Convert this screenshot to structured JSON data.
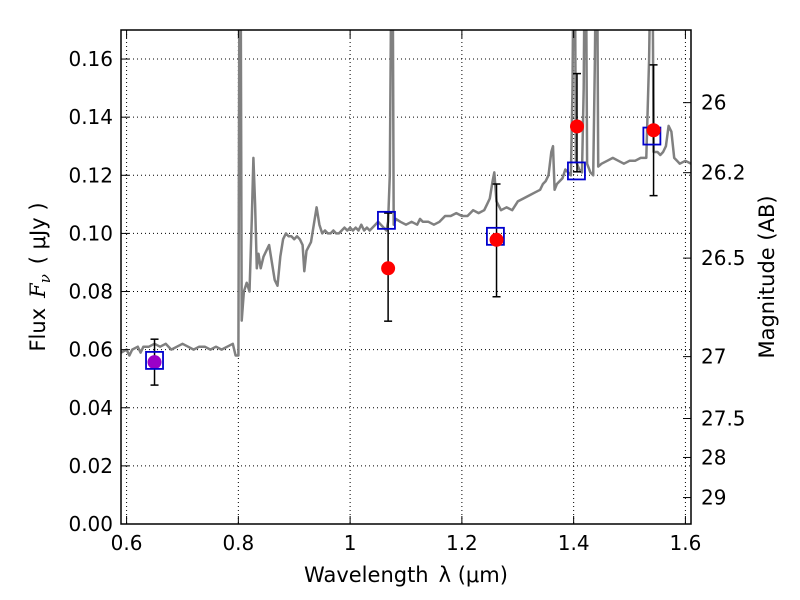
{
  "chart_data": {
    "type": "scatter",
    "xlabel_prefix": "Wavelength",
    "xlabel_math": "λ (μm)",
    "ylabel_prefix": "Flux",
    "ylabel_math": "F",
    "ylabel_sub": "ν",
    "ylabel_unit": "( μJy )",
    "ylabel_right": "Magnitude (AB)",
    "xlim": [
      0.59,
      1.61
    ],
    "ylim": [
      0.0,
      0.17
    ],
    "x_ticks": [
      0.6,
      0.8,
      1.0,
      1.2,
      1.4,
      1.6
    ],
    "x_tick_labels": [
      "0.6",
      "0.8",
      "1",
      "1.2",
      "1.4",
      "1.6"
    ],
    "y_ticks": [
      0.0,
      0.02,
      0.04,
      0.06,
      0.08,
      0.1,
      0.12,
      0.14,
      0.16
    ],
    "y_tick_labels": [
      "0.00",
      "0.02",
      "0.04",
      "0.06",
      "0.08",
      "0.10",
      "0.12",
      "0.14",
      "0.16"
    ],
    "right_ticks": [
      {
        "flux": 0.145,
        "label": "26"
      },
      {
        "flux": 0.1209,
        "label": "26.2"
      },
      {
        "flux": 0.0915,
        "label": "26.5"
      },
      {
        "flux": 0.0576,
        "label": "27"
      },
      {
        "flux": 0.0363,
        "label": "27.5"
      },
      {
        "flux": 0.0229,
        "label": "28"
      },
      {
        "flux": 0.0091,
        "label": "29"
      }
    ],
    "grid": true,
    "series": [
      {
        "kind": "model_spectrum",
        "color": "#808080",
        "points": [
          [
            0.59,
            0.059
          ],
          [
            0.6,
            0.06
          ],
          [
            0.605,
            0.058
          ],
          [
            0.61,
            0.06
          ],
          [
            0.62,
            0.061
          ],
          [
            0.625,
            0.059
          ],
          [
            0.63,
            0.061
          ],
          [
            0.64,
            0.061
          ],
          [
            0.65,
            0.062
          ],
          [
            0.66,
            0.061
          ],
          [
            0.67,
            0.062
          ],
          [
            0.68,
            0.06
          ],
          [
            0.69,
            0.061
          ],
          [
            0.7,
            0.062
          ],
          [
            0.71,
            0.061
          ],
          [
            0.72,
            0.06
          ],
          [
            0.73,
            0.061
          ],
          [
            0.74,
            0.061
          ],
          [
            0.75,
            0.06
          ],
          [
            0.76,
            0.061
          ],
          [
            0.77,
            0.06
          ],
          [
            0.78,
            0.061
          ],
          [
            0.79,
            0.062
          ],
          [
            0.795,
            0.058
          ],
          [
            0.8,
            0.058
          ],
          [
            0.802,
            0.2
          ],
          [
            0.804,
            0.2
          ],
          [
            0.806,
            0.07
          ],
          [
            0.81,
            0.08
          ],
          [
            0.815,
            0.083
          ],
          [
            0.82,
            0.08
          ],
          [
            0.824,
            0.105
          ],
          [
            0.827,
            0.126
          ],
          [
            0.83,
            0.11
          ],
          [
            0.833,
            0.088
          ],
          [
            0.836,
            0.093
          ],
          [
            0.84,
            0.088
          ],
          [
            0.845,
            0.092
          ],
          [
            0.85,
            0.094
          ],
          [
            0.855,
            0.096
          ],
          [
            0.86,
            0.09
          ],
          [
            0.865,
            0.084
          ],
          [
            0.87,
            0.082
          ],
          [
            0.875,
            0.092
          ],
          [
            0.88,
            0.098
          ],
          [
            0.885,
            0.1
          ],
          [
            0.89,
            0.099
          ],
          [
            0.895,
            0.099
          ],
          [
            0.9,
            0.098
          ],
          [
            0.905,
            0.099
          ],
          [
            0.91,
            0.098
          ],
          [
            0.915,
            0.096
          ],
          [
            0.918,
            0.087
          ],
          [
            0.922,
            0.094
          ],
          [
            0.93,
            0.097
          ],
          [
            0.935,
            0.103
          ],
          [
            0.94,
            0.109
          ],
          [
            0.945,
            0.103
          ],
          [
            0.95,
            0.1
          ],
          [
            0.955,
            0.101
          ],
          [
            0.96,
            0.1
          ],
          [
            0.965,
            0.1
          ],
          [
            0.97,
            0.101
          ],
          [
            0.975,
            0.1
          ],
          [
            0.98,
            0.1
          ],
          [
            0.985,
            0.101
          ],
          [
            0.99,
            0.102
          ],
          [
            0.995,
            0.101
          ],
          [
            1.0,
            0.102
          ],
          [
            1.005,
            0.101
          ],
          [
            1.01,
            0.102
          ],
          [
            1.015,
            0.101
          ],
          [
            1.02,
            0.103
          ],
          [
            1.025,
            0.101
          ],
          [
            1.03,
            0.102
          ],
          [
            1.035,
            0.101
          ],
          [
            1.04,
            0.102
          ],
          [
            1.045,
            0.103
          ],
          [
            1.05,
            0.104
          ],
          [
            1.055,
            0.103
          ],
          [
            1.06,
            0.102
          ],
          [
            1.065,
            0.101
          ],
          [
            1.068,
            0.104
          ],
          [
            1.071,
            0.12
          ],
          [
            1.074,
            0.2
          ],
          [
            1.076,
            0.2
          ],
          [
            1.078,
            0.103
          ],
          [
            1.082,
            0.105
          ],
          [
            1.09,
            0.104
          ],
          [
            1.1,
            0.103
          ],
          [
            1.11,
            0.104
          ],
          [
            1.12,
            0.103
          ],
          [
            1.125,
            0.105
          ],
          [
            1.13,
            0.104
          ],
          [
            1.14,
            0.104
          ],
          [
            1.15,
            0.103
          ],
          [
            1.16,
            0.104
          ],
          [
            1.17,
            0.106
          ],
          [
            1.18,
            0.106
          ],
          [
            1.19,
            0.107
          ],
          [
            1.2,
            0.106
          ],
          [
            1.21,
            0.106
          ],
          [
            1.22,
            0.108
          ],
          [
            1.23,
            0.107
          ],
          [
            1.24,
            0.108
          ],
          [
            1.245,
            0.11
          ],
          [
            1.25,
            0.112
          ],
          [
            1.255,
            0.118
          ],
          [
            1.258,
            0.121
          ],
          [
            1.262,
            0.111
          ],
          [
            1.27,
            0.108
          ],
          [
            1.28,
            0.109
          ],
          [
            1.29,
            0.108
          ],
          [
            1.3,
            0.111
          ],
          [
            1.31,
            0.112
          ],
          [
            1.32,
            0.113
          ],
          [
            1.33,
            0.114
          ],
          [
            1.34,
            0.115
          ],
          [
            1.345,
            0.117
          ],
          [
            1.35,
            0.118
          ],
          [
            1.355,
            0.12
          ],
          [
            1.36,
            0.128
          ],
          [
            1.363,
            0.13
          ],
          [
            1.366,
            0.115
          ],
          [
            1.37,
            0.117
          ],
          [
            1.375,
            0.118
          ],
          [
            1.38,
            0.119
          ],
          [
            1.385,
            0.122
          ],
          [
            1.39,
            0.121
          ],
          [
            1.395,
            0.12
          ],
          [
            1.398,
            0.15
          ],
          [
            1.4,
            0.2
          ],
          [
            1.402,
            0.2
          ],
          [
            1.404,
            0.125
          ],
          [
            1.41,
            0.122
          ],
          [
            1.415,
            0.121
          ],
          [
            1.418,
            0.15
          ],
          [
            1.42,
            0.2
          ],
          [
            1.422,
            0.2
          ],
          [
            1.424,
            0.124
          ],
          [
            1.43,
            0.121
          ],
          [
            1.435,
            0.12
          ],
          [
            1.438,
            0.16
          ],
          [
            1.44,
            0.2
          ],
          [
            1.442,
            0.2
          ],
          [
            1.444,
            0.123
          ],
          [
            1.45,
            0.124
          ],
          [
            1.46,
            0.125
          ],
          [
            1.47,
            0.126
          ],
          [
            1.48,
            0.125
          ],
          [
            1.49,
            0.124
          ],
          [
            1.5,
            0.125
          ],
          [
            1.51,
            0.125
          ],
          [
            1.52,
            0.126
          ],
          [
            1.53,
            0.126
          ],
          [
            1.535,
            0.16
          ],
          [
            1.538,
            0.2
          ],
          [
            1.541,
            0.2
          ],
          [
            1.543,
            0.128
          ],
          [
            1.55,
            0.128
          ],
          [
            1.555,
            0.127
          ],
          [
            1.56,
            0.128
          ],
          [
            1.565,
            0.13
          ],
          [
            1.57,
            0.137
          ],
          [
            1.575,
            0.135
          ],
          [
            1.58,
            0.126
          ],
          [
            1.585,
            0.125
          ],
          [
            1.59,
            0.124
          ],
          [
            1.6,
            0.125
          ],
          [
            1.61,
            0.124
          ]
        ]
      },
      {
        "kind": "model_photometry",
        "marker": "open-square",
        "color": "#0000cc",
        "points": [
          [
            0.65,
            0.0563
          ],
          [
            1.065,
            0.1045
          ],
          [
            1.26,
            0.099
          ],
          [
            1.405,
            0.1215
          ],
          [
            1.54,
            0.1335
          ]
        ]
      },
      {
        "kind": "observed",
        "marker": "filled-circle",
        "color": "#ff0000",
        "first_point_color": "#9b00c8",
        "points": [
          {
            "x": 0.65,
            "y": 0.0557,
            "ylo": 0.0478,
            "yhi": 0.0636
          },
          {
            "x": 1.068,
            "y": 0.088,
            "ylo": 0.0698,
            "yhi": 0.107
          },
          {
            "x": 1.262,
            "y": 0.0978,
            "ylo": 0.0782,
            "yhi": 0.117
          },
          {
            "x": 1.406,
            "y": 0.1368,
            "ylo": 0.1212,
            "yhi": 0.155
          },
          {
            "x": 1.543,
            "y": 0.1355,
            "ylo": 0.113,
            "yhi": 0.158
          }
        ]
      }
    ]
  }
}
